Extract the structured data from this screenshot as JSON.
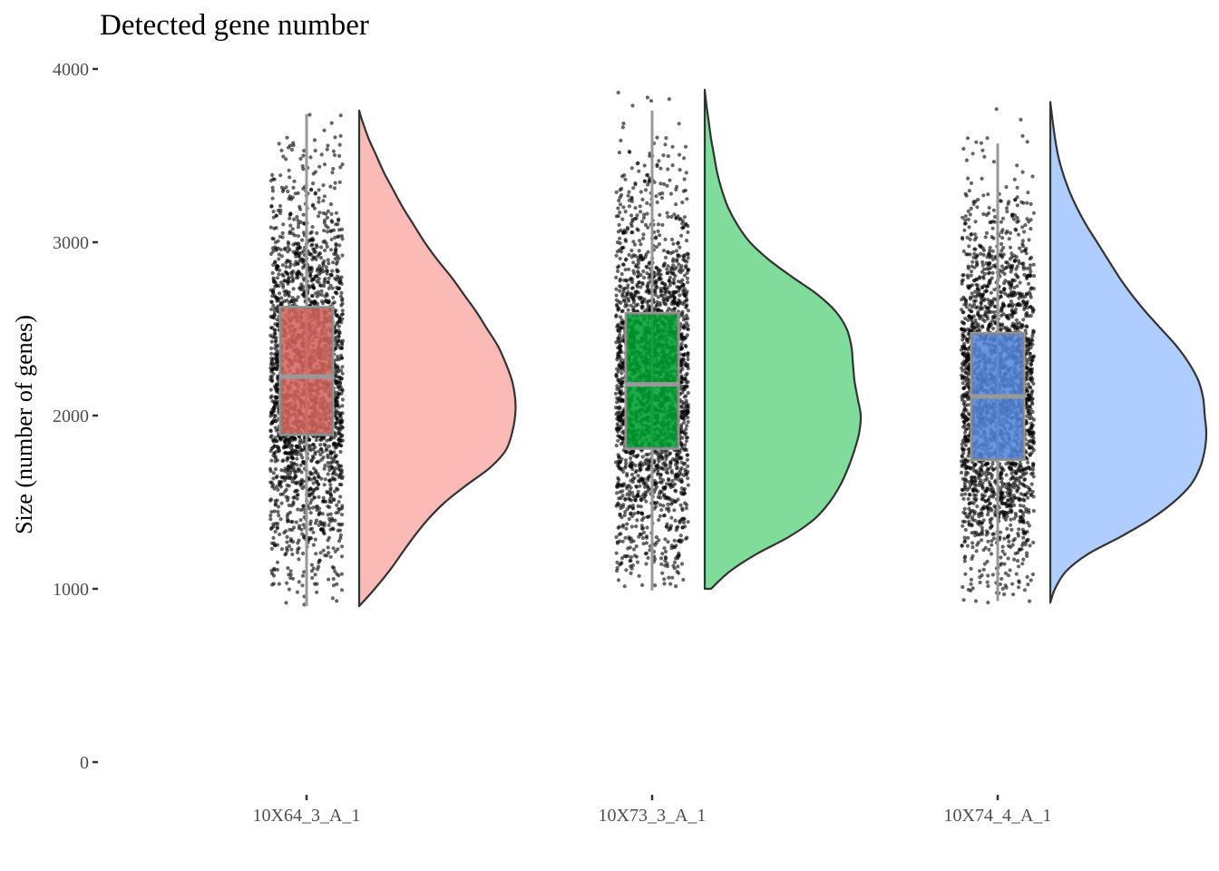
{
  "chart_data": {
    "type": "raincloud",
    "title": "Detected gene number",
    "xlabel": "",
    "ylabel": "Size (number of genes)",
    "ylim": [
      0,
      4000
    ],
    "yticks": [
      0,
      1000,
      2000,
      3000,
      4000
    ],
    "grid": false,
    "legend": "none",
    "categories": [
      "10X64_3_A_1",
      "10X73_3_A_1",
      "10X74_4_A_1"
    ],
    "series": [
      {
        "category": "10X64_3_A_1",
        "color": "#F8766D",
        "box": {
          "whisker_low": 900,
          "q1": 1890,
          "median": 2225,
          "q3": 2625,
          "whisker_high": 3740
        },
        "range": [
          900,
          3760
        ],
        "density_peak": 2070,
        "density_curve": [
          [
            900,
            0.0
          ],
          [
            1000,
            0.1
          ],
          [
            1100,
            0.19
          ],
          [
            1200,
            0.27
          ],
          [
            1300,
            0.35
          ],
          [
            1400,
            0.44
          ],
          [
            1500,
            0.55
          ],
          [
            1600,
            0.69
          ],
          [
            1700,
            0.84
          ],
          [
            1800,
            0.94
          ],
          [
            1900,
            0.98
          ],
          [
            2000,
            1.0
          ],
          [
            2100,
            1.0
          ],
          [
            2200,
            0.98
          ],
          [
            2300,
            0.94
          ],
          [
            2400,
            0.89
          ],
          [
            2500,
            0.82
          ],
          [
            2600,
            0.75
          ],
          [
            2700,
            0.67
          ],
          [
            2800,
            0.59
          ],
          [
            2900,
            0.5
          ],
          [
            3000,
            0.42
          ],
          [
            3100,
            0.35
          ],
          [
            3200,
            0.28
          ],
          [
            3300,
            0.22
          ],
          [
            3400,
            0.16
          ],
          [
            3500,
            0.11
          ],
          [
            3600,
            0.06
          ],
          [
            3700,
            0.02
          ],
          [
            3760,
            0.0
          ]
        ]
      },
      {
        "category": "10X73_3_A_1",
        "color": "#00BA38",
        "box": {
          "whisker_low": 990,
          "q1": 1810,
          "median": 2180,
          "q3": 2590,
          "whisker_high": 3760
        },
        "range": [
          1000,
          3880
        ],
        "density_peak": 2000,
        "density_curve": [
          [
            1000,
            0.04
          ],
          [
            1100,
            0.16
          ],
          [
            1200,
            0.33
          ],
          [
            1300,
            0.54
          ],
          [
            1400,
            0.7
          ],
          [
            1500,
            0.8
          ],
          [
            1600,
            0.87
          ],
          [
            1700,
            0.92
          ],
          [
            1800,
            0.96
          ],
          [
            1900,
            0.99
          ],
          [
            2000,
            1.0
          ],
          [
            2100,
            0.98
          ],
          [
            2200,
            0.96
          ],
          [
            2300,
            0.95
          ],
          [
            2400,
            0.94
          ],
          [
            2500,
            0.91
          ],
          [
            2600,
            0.84
          ],
          [
            2700,
            0.72
          ],
          [
            2800,
            0.56
          ],
          [
            2900,
            0.41
          ],
          [
            3000,
            0.29
          ],
          [
            3100,
            0.21
          ],
          [
            3200,
            0.15
          ],
          [
            3300,
            0.11
          ],
          [
            3400,
            0.08
          ],
          [
            3500,
            0.06
          ],
          [
            3600,
            0.04
          ],
          [
            3700,
            0.025
          ],
          [
            3800,
            0.01
          ],
          [
            3880,
            0.0
          ]
        ]
      },
      {
        "category": "10X74_4_A_1",
        "color": "#619CFF",
        "box": {
          "whisker_low": 930,
          "q1": 1745,
          "median": 2110,
          "q3": 2475,
          "whisker_high": 3570
        },
        "range": [
          920,
          3810
        ],
        "density_peak": 1900,
        "density_curve": [
          [
            920,
            0.0
          ],
          [
            1000,
            0.03
          ],
          [
            1100,
            0.1
          ],
          [
            1200,
            0.24
          ],
          [
            1300,
            0.45
          ],
          [
            1400,
            0.64
          ],
          [
            1500,
            0.79
          ],
          [
            1600,
            0.9
          ],
          [
            1700,
            0.96
          ],
          [
            1800,
            0.99
          ],
          [
            1900,
            1.0
          ],
          [
            2000,
            0.99
          ],
          [
            2100,
            0.98
          ],
          [
            2200,
            0.95
          ],
          [
            2300,
            0.89
          ],
          [
            2400,
            0.81
          ],
          [
            2500,
            0.71
          ],
          [
            2600,
            0.61
          ],
          [
            2700,
            0.52
          ],
          [
            2800,
            0.44
          ],
          [
            2900,
            0.37
          ],
          [
            3000,
            0.3
          ],
          [
            3100,
            0.23
          ],
          [
            3200,
            0.17
          ],
          [
            3300,
            0.12
          ],
          [
            3400,
            0.08
          ],
          [
            3500,
            0.05
          ],
          [
            3600,
            0.03
          ],
          [
            3700,
            0.015
          ],
          [
            3810,
            0.0
          ]
        ]
      }
    ]
  }
}
